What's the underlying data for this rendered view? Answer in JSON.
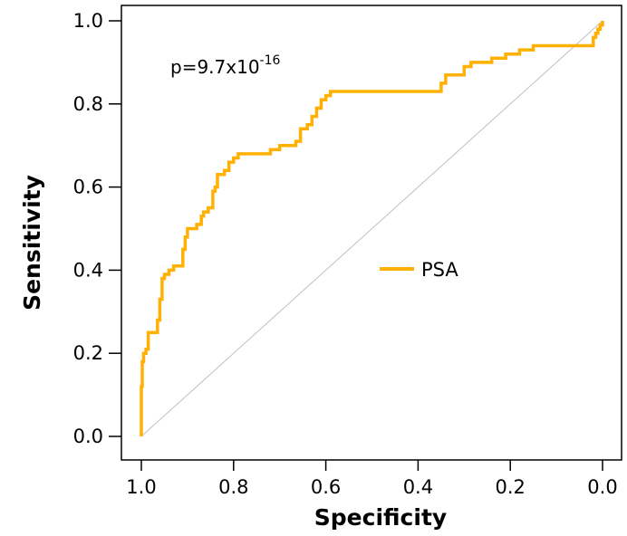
{
  "chart_data": {
    "type": "line",
    "xlabel": "Specificity",
    "ylabel": "Sensitivity",
    "x_reversed": true,
    "xlim": [
      0.0,
      1.0
    ],
    "ylim": [
      0.0,
      1.0
    ],
    "x_ticks": [
      1.0,
      0.8,
      0.6,
      0.4,
      0.2,
      0.0
    ],
    "x_tick_labels": [
      "1.0",
      "0.8",
      "0.6",
      "0.4",
      "0.2",
      "0.0"
    ],
    "y_ticks": [
      0.0,
      0.2,
      0.4,
      0.6,
      0.8,
      1.0
    ],
    "y_tick_labels": [
      "0.0",
      "0.2",
      "0.4",
      "0.6",
      "0.8",
      "1.0"
    ],
    "grid": false,
    "legend_position": "center-right",
    "annotation": {
      "base": "p=9.7x10",
      "exponent": "-16"
    },
    "reference_line": {
      "from": [
        1.0,
        0.0
      ],
      "to": [
        0.0,
        1.0
      ],
      "color": "#c0c0c0"
    },
    "series": [
      {
        "name": "PSA",
        "color": "#ffb000",
        "x": [
          1.0,
          1.0,
          0.998,
          0.998,
          0.995,
          0.995,
          0.99,
          0.99,
          0.985,
          0.985,
          0.965,
          0.965,
          0.96,
          0.96,
          0.955,
          0.955,
          0.95,
          0.95,
          0.94,
          0.94,
          0.93,
          0.93,
          0.925,
          0.925,
          0.91,
          0.91,
          0.905,
          0.905,
          0.9,
          0.9,
          0.88,
          0.88,
          0.87,
          0.87,
          0.865,
          0.865,
          0.855,
          0.855,
          0.845,
          0.845,
          0.84,
          0.84,
          0.835,
          0.835,
          0.82,
          0.82,
          0.81,
          0.81,
          0.8,
          0.8,
          0.79,
          0.79,
          0.72,
          0.72,
          0.7,
          0.7,
          0.665,
          0.665,
          0.655,
          0.655,
          0.64,
          0.64,
          0.63,
          0.63,
          0.62,
          0.62,
          0.61,
          0.61,
          0.6,
          0.6,
          0.59,
          0.59,
          0.58,
          0.58,
          0.35,
          0.35,
          0.34,
          0.34,
          0.3,
          0.3,
          0.285,
          0.285,
          0.24,
          0.24,
          0.21,
          0.21,
          0.18,
          0.18,
          0.15,
          0.15,
          0.145,
          0.145,
          0.02,
          0.02,
          0.015,
          0.015,
          0.01,
          0.01,
          0.005,
          0.005,
          0.0,
          0.0
        ],
        "y": [
          0.0,
          0.12,
          0.12,
          0.18,
          0.18,
          0.2,
          0.2,
          0.21,
          0.21,
          0.25,
          0.25,
          0.28,
          0.28,
          0.33,
          0.33,
          0.38,
          0.38,
          0.39,
          0.39,
          0.4,
          0.4,
          0.41,
          0.41,
          0.41,
          0.41,
          0.45,
          0.45,
          0.48,
          0.48,
          0.5,
          0.5,
          0.51,
          0.51,
          0.53,
          0.53,
          0.54,
          0.54,
          0.55,
          0.55,
          0.59,
          0.59,
          0.6,
          0.6,
          0.63,
          0.63,
          0.64,
          0.64,
          0.66,
          0.66,
          0.67,
          0.67,
          0.68,
          0.68,
          0.69,
          0.69,
          0.7,
          0.7,
          0.71,
          0.71,
          0.74,
          0.74,
          0.75,
          0.75,
          0.77,
          0.77,
          0.79,
          0.79,
          0.81,
          0.81,
          0.82,
          0.82,
          0.83,
          0.83,
          0.83,
          0.83,
          0.85,
          0.85,
          0.87,
          0.87,
          0.89,
          0.89,
          0.9,
          0.9,
          0.91,
          0.91,
          0.92,
          0.92,
          0.93,
          0.93,
          0.94,
          0.94,
          0.94,
          0.94,
          0.96,
          0.96,
          0.97,
          0.97,
          0.98,
          0.98,
          0.99,
          0.99,
          1.0
        ]
      }
    ]
  }
}
